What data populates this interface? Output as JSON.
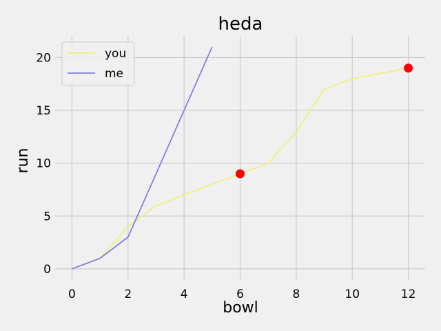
{
  "chart_data": {
    "type": "line",
    "title": "heda",
    "xlabel": "bowl",
    "ylabel": "run",
    "xlim": [
      -0.6,
      12.6
    ],
    "ylim": [
      -1.05,
      22.05
    ],
    "xticks": [
      0,
      2,
      4,
      6,
      8,
      10,
      12
    ],
    "yticks": [
      0,
      5,
      10,
      15,
      20
    ],
    "grid": true,
    "legend_position": "top-left",
    "series": [
      {
        "name": "you",
        "color": "#f0f07a",
        "x": [
          0,
          1,
          2,
          3,
          4,
          5,
          6,
          7,
          8,
          9,
          10,
          11,
          12
        ],
        "y": [
          0,
          1,
          4,
          6,
          7,
          8,
          9,
          10,
          13,
          17,
          18,
          18.5,
          19
        ]
      },
      {
        "name": "me",
        "color": "#8080e0",
        "x": [
          0,
          1,
          2,
          3,
          4,
          5
        ],
        "y": [
          0,
          1,
          3,
          9,
          15,
          21
        ]
      }
    ],
    "markers": {
      "color": "#ff0000",
      "points": [
        {
          "x": 6,
          "y": 9
        },
        {
          "x": 12,
          "y": 19
        }
      ]
    }
  }
}
